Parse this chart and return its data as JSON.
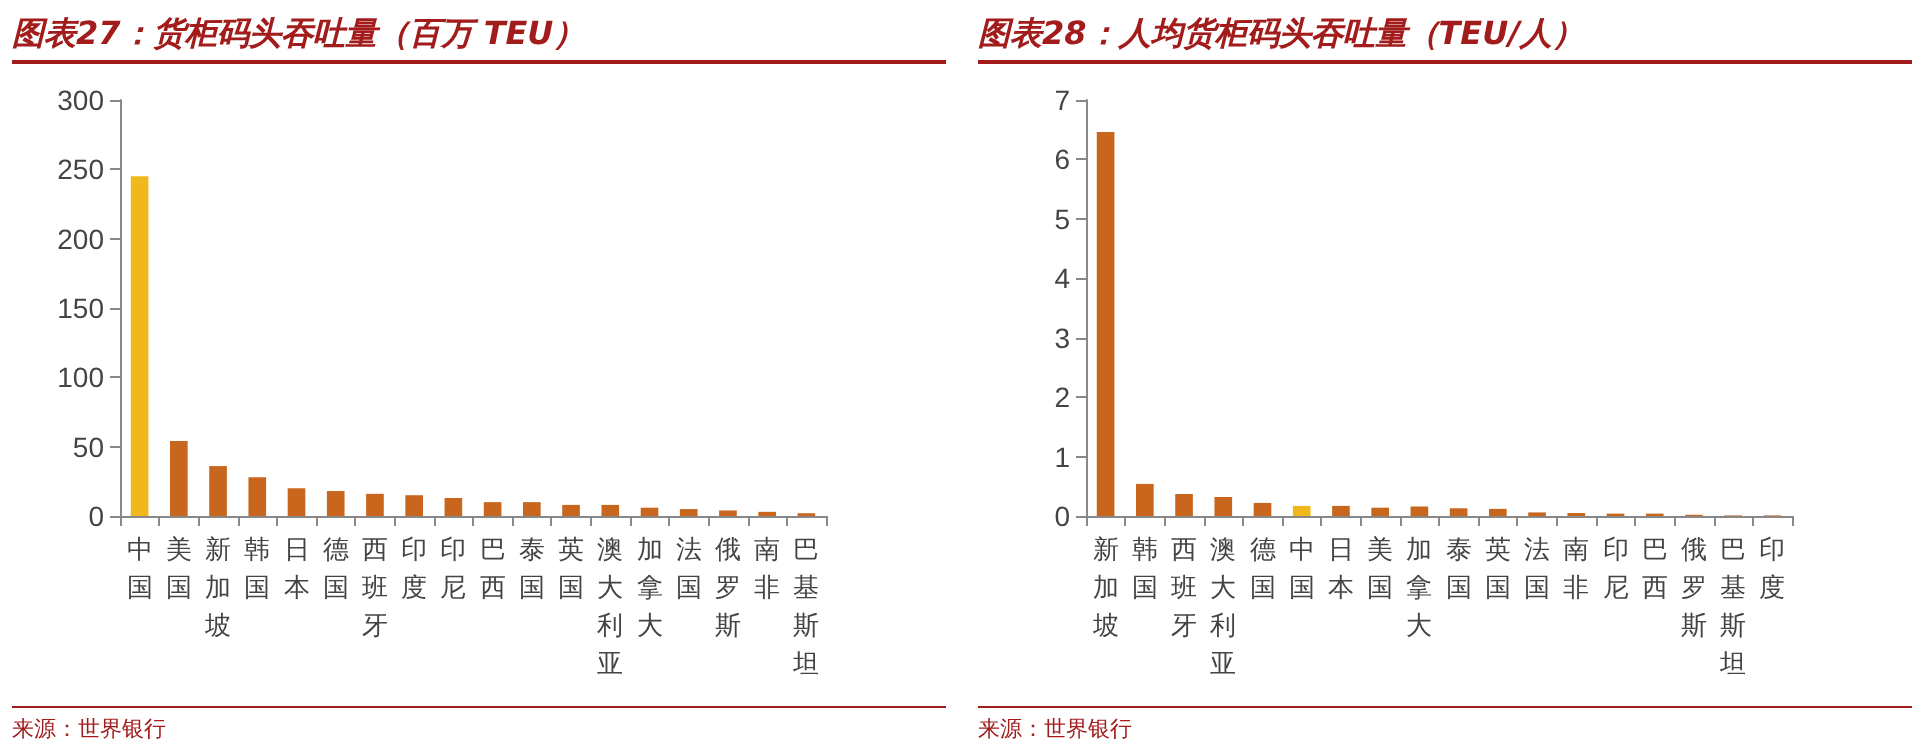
{
  "chart_data": [
    {
      "type": "bar",
      "title": "图表27：货柜码头吞吐量（百万 TEU）",
      "categories": [
        "中国",
        "美国",
        "新加坡",
        "韩国",
        "日本",
        "德国",
        "西班牙",
        "印度",
        "印尼",
        "巴西",
        "泰国",
        "英国",
        "澳大利亚",
        "加拿大",
        "法国",
        "俄罗斯",
        "南非",
        "巴基斯坦"
      ],
      "values": [
        245,
        54,
        36,
        28,
        20,
        18,
        16,
        15,
        13,
        10,
        10,
        8,
        8,
        6,
        5,
        4,
        3,
        2
      ],
      "colors": [
        "#f0b81c",
        "#c8661e",
        "#c8661e",
        "#c8661e",
        "#c8661e",
        "#c8661e",
        "#c8661e",
        "#c8661e",
        "#c8661e",
        "#c8661e",
        "#c8661e",
        "#c8661e",
        "#c8661e",
        "#c8661e",
        "#c8661e",
        "#c8661e",
        "#c8661e",
        "#c8661e"
      ],
      "ylim": [
        0,
        300
      ],
      "yticks": [
        0,
        50,
        100,
        150,
        200,
        250,
        300
      ],
      "grid": false,
      "annotations": [
        "来源：世界银行"
      ]
    },
    {
      "type": "bar",
      "title": "图表28：人均货柜码头吞吐量（TEU/人）",
      "categories": [
        "新加坡",
        "韩国",
        "西班牙",
        "澳大利亚",
        "德国",
        "中国",
        "日本",
        "美国",
        "加拿大",
        "泰国",
        "英国",
        "法国",
        "南非",
        "印尼",
        "巴西",
        "俄罗斯",
        "巴基斯坦",
        "印度"
      ],
      "values": [
        6.46,
        0.54,
        0.37,
        0.32,
        0.22,
        0.17,
        0.17,
        0.14,
        0.16,
        0.13,
        0.12,
        0.06,
        0.05,
        0.04,
        0.04,
        0.02,
        0.01,
        0.01
      ],
      "colors": [
        "#c8661e",
        "#c8661e",
        "#c8661e",
        "#c8661e",
        "#c8661e",
        "#f0b81c",
        "#c8661e",
        "#c8661e",
        "#c8661e",
        "#c8661e",
        "#c8661e",
        "#c8661e",
        "#c8661e",
        "#c8661e",
        "#c8661e",
        "#c8661e",
        "#c8661e",
        "#c8661e"
      ],
      "ylim": [
        0,
        7
      ],
      "yticks": [
        0,
        1,
        2,
        3,
        4,
        5,
        6,
        7
      ],
      "grid": false,
      "annotations": [
        "来源：世界银行"
      ]
    }
  ]
}
